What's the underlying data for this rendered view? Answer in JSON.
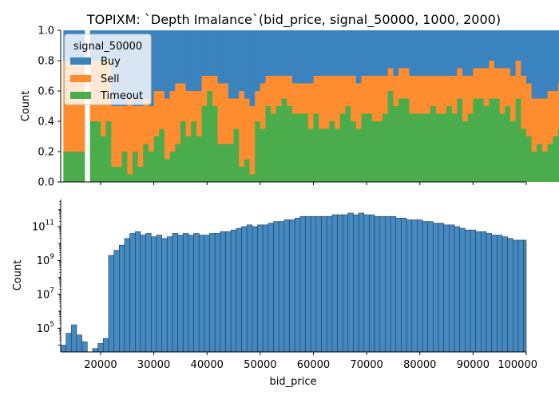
{
  "title": "TOPIXM: `Depth Imalance`(bid_price, signal_50000, 1000, 2000)",
  "colors": {
    "buy": "#3b83be",
    "sell": "#ff8c2f",
    "timeout": "#4aac4a",
    "hist": "#3b83be"
  },
  "chart_data": [
    {
      "type": "area",
      "stacked": "fill",
      "ylabel": "Count",
      "ylim": [
        0,
        1.0
      ],
      "yticks": [
        "0.0",
        "0.2",
        "0.4",
        "0.6",
        "0.8",
        "1.0"
      ],
      "grid": false,
      "legend": {
        "title": "signal_50000",
        "position": "top-left",
        "entries": [
          "Buy",
          "Sell",
          "Timeout"
        ]
      },
      "bin_width": 1000,
      "x_start": 13000,
      "gaps": [
        17000
      ],
      "series": [
        {
          "name": "Timeout",
          "values": [
            0.2,
            0.2,
            0.2,
            0.2,
            0,
            0.4,
            0.4,
            0.3,
            0.4,
            0.1,
            0.1,
            0.2,
            0.05,
            0.2,
            0.1,
            0.25,
            0.2,
            0.3,
            0.35,
            0.15,
            0.2,
            0.25,
            0.4,
            0.3,
            0.4,
            0.3,
            0.5,
            0.6,
            0.5,
            0.25,
            0.25,
            0.25,
            0.35,
            0.1,
            0.15,
            0.05,
            0.4,
            0.35,
            0.5,
            0.45,
            0.5,
            0.55,
            0.5,
            0.45,
            0.45,
            0.45,
            0.35,
            0.45,
            0.35,
            0.35,
            0.4,
            0.35,
            0.45,
            0.5,
            0.4,
            0.35,
            0.45,
            0.45,
            0.4,
            0.4,
            0.45,
            0.6,
            0.5,
            0.55,
            0.55,
            0.45,
            0.45,
            0.45,
            0.45,
            0.5,
            0.45,
            0.45,
            0.5,
            0.45,
            0.55,
            0.4,
            0.45,
            0.55,
            0.55,
            0.5,
            0.55,
            0.55,
            0.45,
            0.5,
            0.4,
            0.55,
            0.35,
            0.3,
            0.2,
            0.25,
            0.2,
            0.25,
            0.3,
            0.35,
            0.3,
            0.3,
            0.3,
            0.3,
            0.3,
            0.3,
            0.3,
            0.3,
            0.3,
            0,
            0,
            0,
            0
          ]
        },
        {
          "name": "Sell",
          "values": [
            0.6,
            0.6,
            0.6,
            0.6,
            0.8,
            0.4,
            0.4,
            0.5,
            0.4,
            0.4,
            0.4,
            0.3,
            0.5,
            0.3,
            0.4,
            0.3,
            0.3,
            0.3,
            0.25,
            0.4,
            0.4,
            0.4,
            0.25,
            0.3,
            0.2,
            0.3,
            0.2,
            0.1,
            0.2,
            0.4,
            0.4,
            0.3,
            0.2,
            0.5,
            0.4,
            0.45,
            0.2,
            0.3,
            0.2,
            0.25,
            0.2,
            0.15,
            0.2,
            0.2,
            0.2,
            0.2,
            0.3,
            0.25,
            0.35,
            0.35,
            0.3,
            0.35,
            0.25,
            0.2,
            0.3,
            0.3,
            0.25,
            0.25,
            0.3,
            0.3,
            0.25,
            0.15,
            0.2,
            0.2,
            0.2,
            0.25,
            0.25,
            0.25,
            0.25,
            0.2,
            0.25,
            0.25,
            0.2,
            0.25,
            0.2,
            0.3,
            0.25,
            0.2,
            0.2,
            0.25,
            0.25,
            0.2,
            0.3,
            0.25,
            0.3,
            0.25,
            0.35,
            0.35,
            0.35,
            0.3,
            0.35,
            0.35,
            0.3,
            0.3,
            0.3,
            0.4,
            0.4,
            0.45,
            0.45,
            0.6,
            0.7,
            0.7,
            0.7,
            1,
            1,
            1,
            1
          ]
        },
        {
          "name": "Buy",
          "values": [
            0.2,
            0.2,
            0.2,
            0.2,
            0.2,
            0.2,
            0.2,
            0.2,
            0.2,
            0.5,
            0.5,
            0.5,
            0.45,
            0.5,
            0.5,
            0.45,
            0.5,
            0.4,
            0.4,
            0.45,
            0.4,
            0.35,
            0.35,
            0.4,
            0.4,
            0.4,
            0.3,
            0.3,
            0.3,
            0.35,
            0.35,
            0.45,
            0.45,
            0.4,
            0.45,
            0.5,
            0.4,
            0.35,
            0.3,
            0.3,
            0.3,
            0.3,
            0.3,
            0.35,
            0.35,
            0.35,
            0.35,
            0.3,
            0.3,
            0.3,
            0.3,
            0.3,
            0.3,
            0.3,
            0.3,
            0.35,
            0.3,
            0.3,
            0.3,
            0.3,
            0.3,
            0.25,
            0.3,
            0.25,
            0.25,
            0.3,
            0.3,
            0.3,
            0.3,
            0.3,
            0.3,
            0.3,
            0.3,
            0.3,
            0.25,
            0.3,
            0.3,
            0.25,
            0.25,
            0.25,
            0.2,
            0.25,
            0.25,
            0.25,
            0.3,
            0.2,
            0.3,
            0.35,
            0.45,
            0.45,
            0.45,
            0.4,
            0.4,
            0.35,
            0.4,
            0.3,
            0.3,
            0.25,
            0.25,
            0.1,
            0,
            0,
            0,
            0,
            0,
            0,
            0
          ]
        }
      ]
    },
    {
      "type": "bar",
      "log_y": true,
      "xlabel": "bid_price",
      "ylabel": "Count",
      "ylim_log10": [
        3.6,
        12.6
      ],
      "yticks": [
        {
          "base": "10",
          "exp": "5",
          "value": 5
        },
        {
          "base": "10",
          "exp": "7",
          "value": 7
        },
        {
          "base": "10",
          "exp": "9",
          "value": 9
        },
        {
          "base": "10",
          "exp": "11",
          "value": 11
        }
      ],
      "xlim": [
        12500,
        100000
      ],
      "xticks": [
        "20000",
        "30000",
        "40000",
        "50000",
        "60000",
        "70000",
        "80000",
        "90000",
        "100000"
      ],
      "bin_width": 1000,
      "x_start": 12500,
      "log10_values": [
        4.0,
        4.7,
        5.2,
        4.6,
        4.2,
        0,
        3.8,
        4.1,
        4.4,
        9.3,
        9.6,
        9.9,
        10.3,
        10.6,
        10.7,
        10.5,
        10.6,
        10.4,
        10.5,
        10.3,
        10.4,
        10.6,
        10.5,
        10.6,
        10.5,
        10.6,
        10.5,
        10.5,
        10.6,
        10.6,
        10.7,
        10.7,
        10.8,
        10.9,
        11.0,
        11.1,
        11.0,
        11.1,
        11.1,
        11.2,
        11.3,
        11.3,
        11.4,
        11.4,
        11.5,
        11.6,
        11.6,
        11.6,
        11.6,
        11.6,
        11.6,
        11.7,
        11.7,
        11.7,
        11.8,
        11.7,
        11.8,
        11.7,
        11.7,
        11.6,
        11.6,
        11.6,
        11.6,
        11.5,
        11.5,
        11.4,
        11.4,
        11.4,
        11.3,
        11.3,
        11.2,
        11.2,
        11.1,
        11.1,
        11.0,
        10.9,
        10.8,
        10.8,
        10.7,
        10.7,
        10.6,
        10.5,
        10.5,
        10.4,
        10.3,
        10.2,
        10.2,
        10.2,
        10.1,
        10.0,
        10.0,
        9.9,
        10.0,
        9.9,
        9.6,
        9.0,
        9.3,
        0,
        9.6,
        9.0
      ]
    }
  ]
}
